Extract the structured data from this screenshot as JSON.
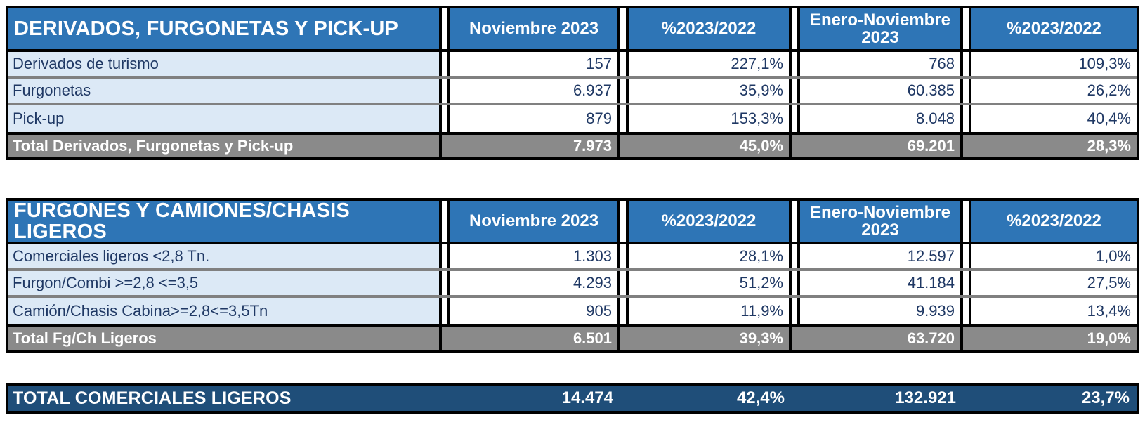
{
  "colors": {
    "header_blue": "#2E75B6",
    "label_light_blue": "#DCE9F6",
    "total_row_gray": "#8A8A8A",
    "row_separator_gray": "#808080",
    "grand_total_navy": "#1F4E79",
    "text_navy": "#1F3864",
    "text_white": "#FFFFFF",
    "border_black": "#000000"
  },
  "tables": [
    {
      "title": "DERIVADOS, FURGONETAS Y PICK-UP",
      "columns": [
        "Noviembre 2023",
        "%2023/2022",
        "Enero-Noviembre 2023",
        "%2023/2022"
      ],
      "rows": [
        {
          "label": "Derivados de turismo",
          "values": [
            "157",
            "227,1%",
            "768",
            "109,3%"
          ]
        },
        {
          "label": "Furgonetas",
          "values": [
            "6.937",
            "35,9%",
            "60.385",
            "26,2%"
          ]
        },
        {
          "label": "Pick-up",
          "values": [
            "879",
            "153,3%",
            "8.048",
            "40,4%"
          ]
        }
      ],
      "total": {
        "label": "Total Derivados, Furgonetas y Pick-up",
        "values": [
          "7.973",
          "45,0%",
          "69.201",
          "28,3%"
        ]
      }
    },
    {
      "title": "FURGONES Y CAMIONES/CHASIS LIGEROS",
      "columns": [
        "Noviembre 2023",
        "%2023/2022",
        "Enero-Noviembre 2023",
        "%2023/2022"
      ],
      "rows": [
        {
          "label": "Comerciales ligeros <2,8 Tn.",
          "values": [
            "1.303",
            "28,1%",
            "12.597",
            "1,0%"
          ]
        },
        {
          "label": "Furgon/Combi >=2,8 <=3,5",
          "values": [
            "4.293",
            "51,2%",
            "41.184",
            "27,5%"
          ]
        },
        {
          "label": "Camión/Chasis Cabina>=2,8<=3,5Tn",
          "values": [
            "905",
            "11,9%",
            "9.939",
            "13,4%"
          ]
        }
      ],
      "total": {
        "label": "Total Fg/Ch Ligeros",
        "values": [
          "6.501",
          "39,3%",
          "63.720",
          "19,0%"
        ]
      }
    }
  ],
  "grand_total": {
    "label": "TOTAL COMERCIALES LIGEROS",
    "values": [
      "14.474",
      "42,4%",
      "132.921",
      "23,7%"
    ]
  }
}
